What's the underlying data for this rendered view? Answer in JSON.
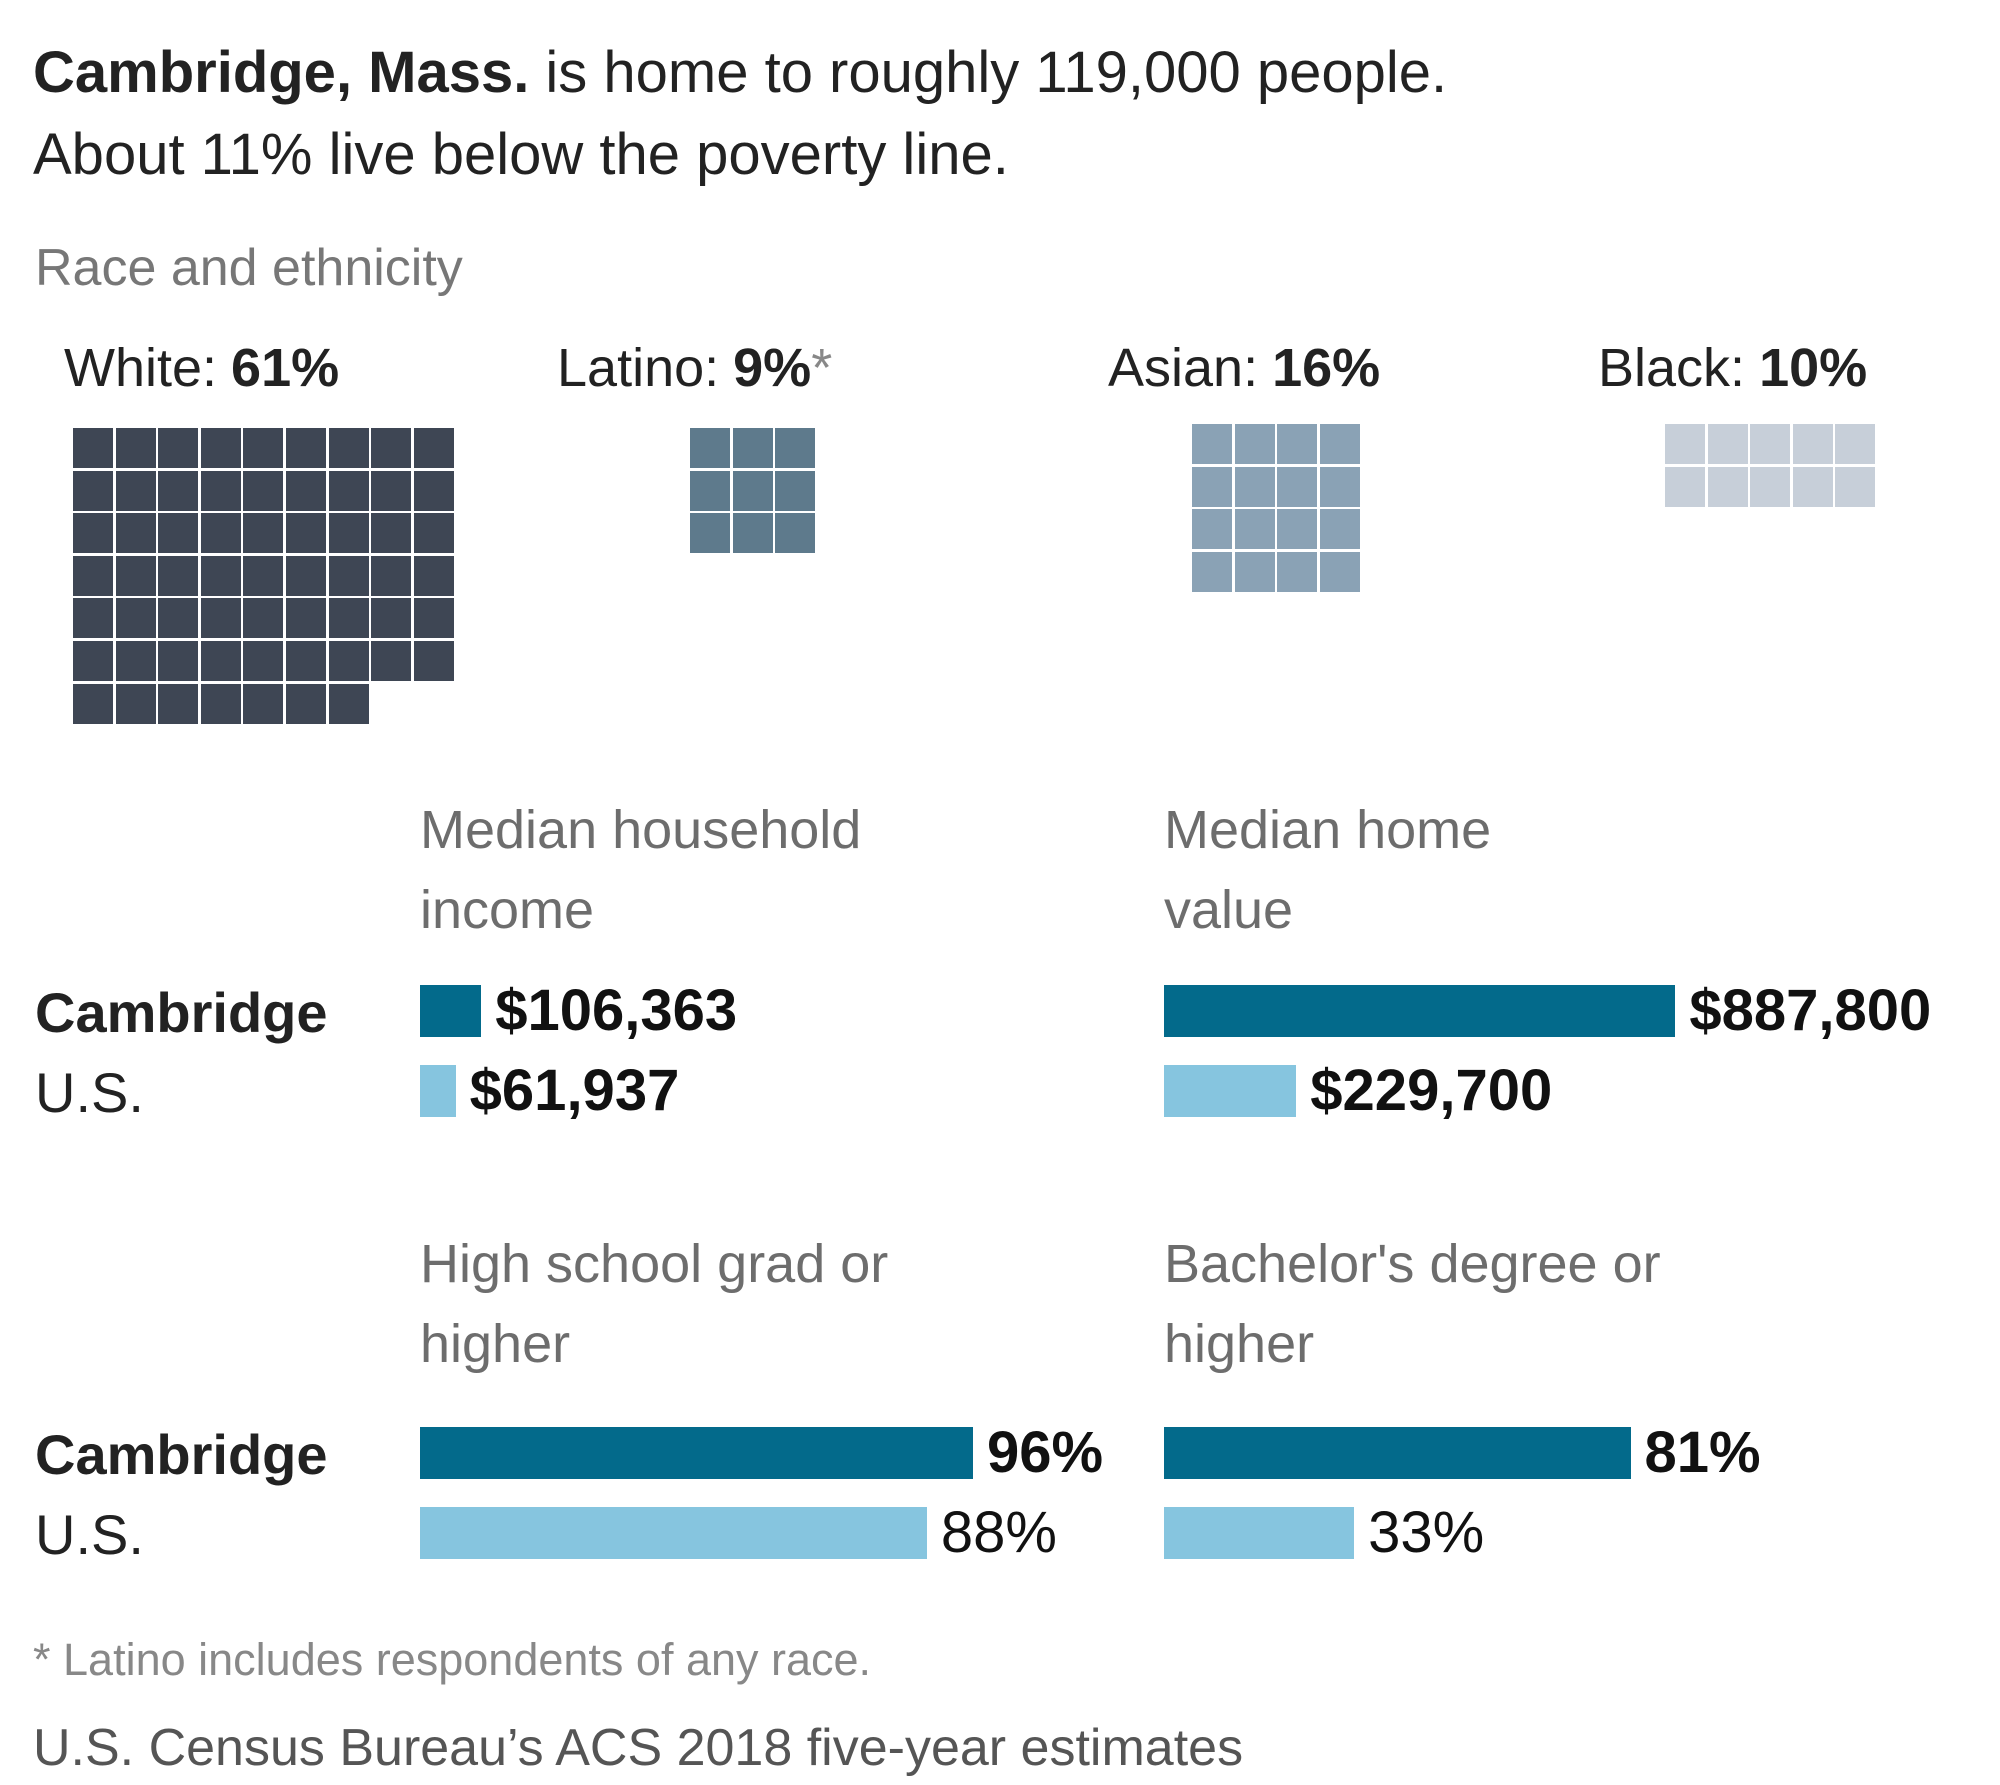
{
  "headline": {
    "bold": "Cambridge, Mass.",
    "text": "is home to roughly 119,000 people.",
    "line2": "About 11% live below the poverty line."
  },
  "chart_data": [
    {
      "type": "waffle",
      "title": "Race and ethnicity",
      "categories": [
        "White:",
        "Latino:",
        "Asian:",
        "Black:"
      ],
      "values": [
        61,
        9,
        16,
        10
      ],
      "value_labels": [
        "61%",
        "9%",
        "16%",
        "10%"
      ],
      "colors": [
        "#3e4654",
        "#5e7a8c",
        "#8aa2b5",
        "#c7cfd9"
      ]
    },
    {
      "type": "bar",
      "title": "Median household income",
      "categories": [
        "Cambridge",
        "U.S."
      ],
      "values": [
        106363,
        61937
      ],
      "value_labels": [
        "$106,363",
        "$61,937"
      ],
      "value_label_bold": [
        true,
        true
      ],
      "colors": [
        "#036a8b",
        "#86c5df"
      ],
      "xlim": [
        0,
        1000000
      ]
    },
    {
      "type": "bar",
      "title": "Median home value",
      "values": [
        887800,
        229700
      ],
      "value_labels": [
        "$887,800",
        "$229,700"
      ],
      "value_label_bold": [
        true,
        true
      ],
      "colors": [
        "#036a8b",
        "#86c5df"
      ],
      "xlim": [
        0,
        1000000
      ]
    },
    {
      "type": "bar",
      "title": "High school grad or higher",
      "categories": [
        "Cambridge",
        "U.S."
      ],
      "values": [
        96,
        88
      ],
      "value_labels": [
        "96%",
        "88%"
      ],
      "value_label_bold": [
        true,
        false
      ],
      "colors": [
        "#036a8b",
        "#86c5df"
      ],
      "xlim": [
        0,
        100
      ]
    },
    {
      "type": "bar",
      "title": "Bachelor's degree or higher",
      "values": [
        81,
        33
      ],
      "value_labels": [
        "81%",
        "33%"
      ],
      "value_label_bold": [
        true,
        false
      ],
      "colors": [
        "#036a8b",
        "#86c5df"
      ],
      "xlim": [
        0,
        100
      ]
    }
  ],
  "footnote": {
    "mark": "*",
    "text": "Latino includes respondents of any race."
  },
  "source": "U.S. Census Bureau’s ACS 2018 five-year estimates"
}
